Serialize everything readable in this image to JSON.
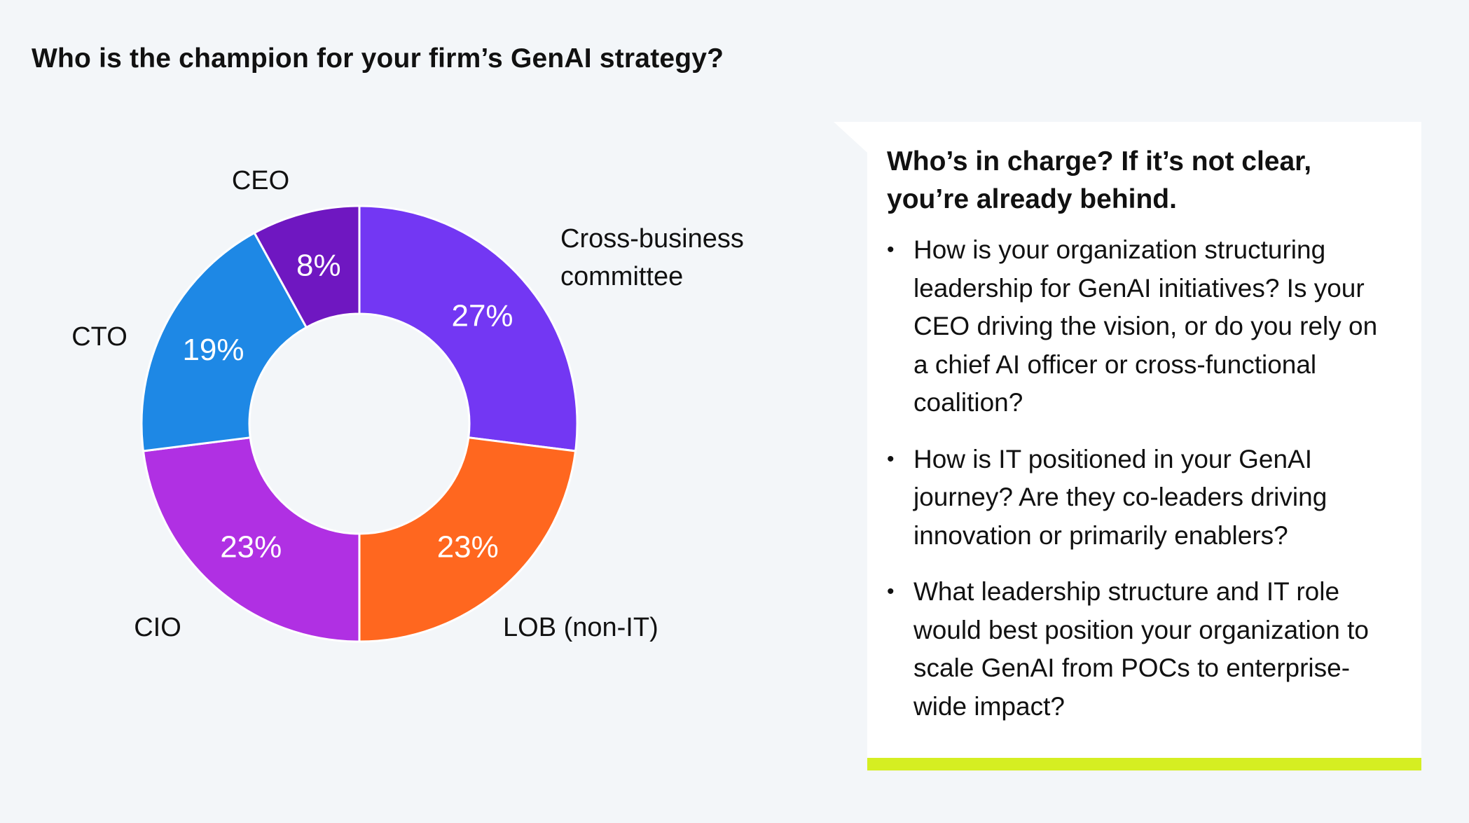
{
  "title": "Who is the champion for your firm’s GenAI strategy?",
  "chart_data": {
    "type": "pie",
    "variant": "donut",
    "slices": [
      {
        "label": "Cross-business committee",
        "label_lines": [
          "Cross-business",
          "committee"
        ],
        "value": 27,
        "value_label": "27%",
        "color": "#7337f3"
      },
      {
        "label": "LOB (non-IT)",
        "label_lines": [
          "LOB (non-IT)"
        ],
        "value": 23,
        "value_label": "23%",
        "color": "#ff671f"
      },
      {
        "label": "CIO",
        "label_lines": [
          "CIO"
        ],
        "value": 23,
        "value_label": "23%",
        "color": "#b030e3"
      },
      {
        "label": "CTO",
        "label_lines": [
          "CTO"
        ],
        "value": 19,
        "value_label": "19%",
        "color": "#1e88e5"
      },
      {
        "label": "CEO",
        "label_lines": [
          "CEO"
        ],
        "value": 8,
        "value_label": "8%",
        "color": "#6f17c1"
      }
    ]
  },
  "callout": {
    "heading_line1": "Who’s in charge? If it’s not clear,",
    "heading_line2": "you’re already behind.",
    "bullet_symbol": "•",
    "bullets": [
      "How is your organization structuring leadership for GenAI initiatives? Is your CEO driving the vision, or do you rely on a chief AI officer or cross-functional coalition?",
      "How is IT positioned in your GenAI journey? Are they co-leaders driving innovation or primarily enablers?",
      "What leadership structure and IT role would best position your organization to scale GenAI from POCs to enterprise-wide impact?"
    ],
    "accent_color": "#d5ee22"
  }
}
